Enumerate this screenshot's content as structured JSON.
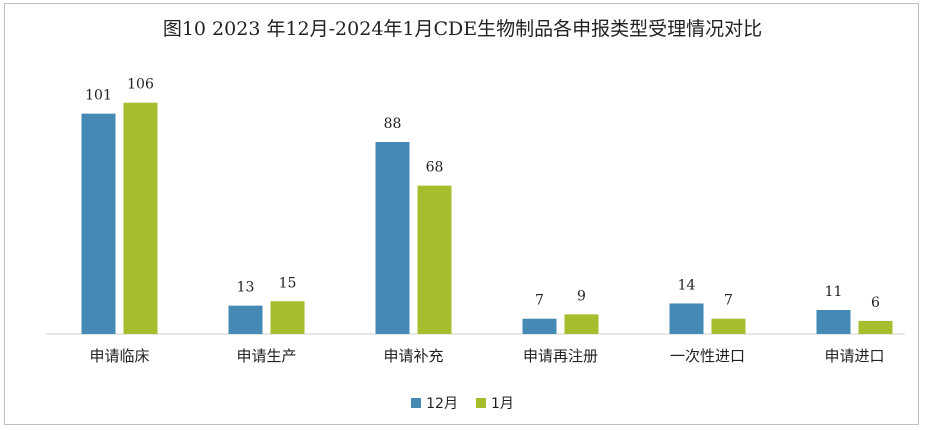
{
  "chart_data": {
    "type": "bar",
    "title": "图10  2023 年12月-2024年1月CDE生物制品各申报类型受理情况对比",
    "categories": [
      "申请临床",
      "申请生产",
      "申请补充",
      "申请再注册",
      "一次性进口",
      "申请进口"
    ],
    "series": [
      {
        "name": "12月",
        "values": [
          101,
          13,
          88,
          7,
          14,
          11
        ],
        "color": "#4589b5"
      },
      {
        "name": "1月",
        "values": [
          106,
          15,
          68,
          9,
          7,
          6
        ],
        "color": "#a6bd2e"
      }
    ],
    "xlabel": "",
    "ylabel": "",
    "ylim": [
      0,
      110
    ],
    "grid": false,
    "legend": "bottom"
  }
}
